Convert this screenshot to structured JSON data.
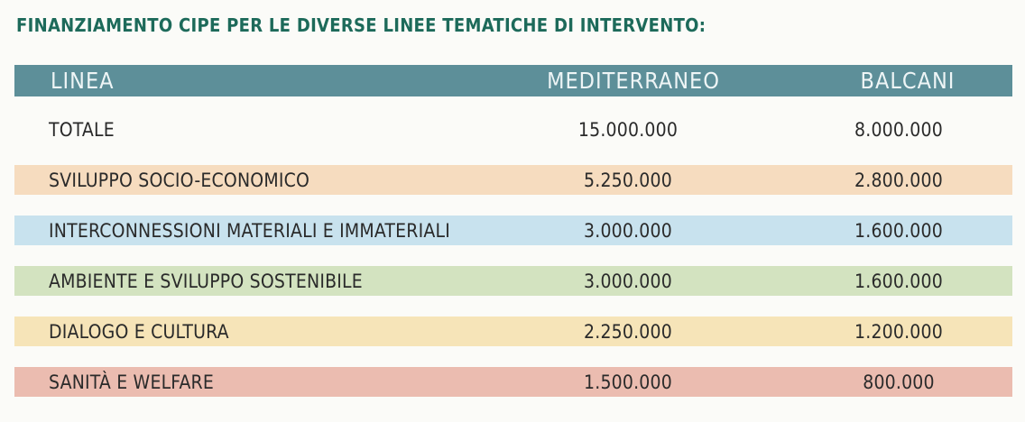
{
  "title": "FINANZIAMENTO CIPE PER LE DIVERSE LINEE TEMATICHE DI INTERVENTO:",
  "table": {
    "headers": [
      "LINEA",
      "MEDITERRANEO",
      "BALCANI"
    ],
    "header_color": "#5d8f99",
    "rows": [
      {
        "linea": "TOTALE",
        "mediterraneo": "15.000.000",
        "balcani": "8.000.000",
        "color": "#fbfbf8"
      },
      {
        "linea": "SVILUPPO SOCIO-ECONOMICO",
        "mediterraneo": "5.250.000",
        "balcani": "2.800.000",
        "color": "#f6dcbf"
      },
      {
        "linea": "INTERCONNESSIONI MATERIALI E IMMATERIALI",
        "mediterraneo": "3.000.000",
        "balcani": "1.600.000",
        "color": "#c8e2ee"
      },
      {
        "linea": "AMBIENTE E SVILUPPO SOSTENIBILE",
        "mediterraneo": "3.000.000",
        "balcani": "1.600.000",
        "color": "#d3e3c0"
      },
      {
        "linea": "DIALOGO E CULTURA",
        "mediterraneo": "2.250.000",
        "balcani": "1.200.000",
        "color": "#f6e4b8"
      },
      {
        "linea": "SANITÀ E WELFARE",
        "mediterraneo": "1.500.000",
        "balcani": "800.000",
        "color": "#ebbcb0"
      }
    ]
  }
}
